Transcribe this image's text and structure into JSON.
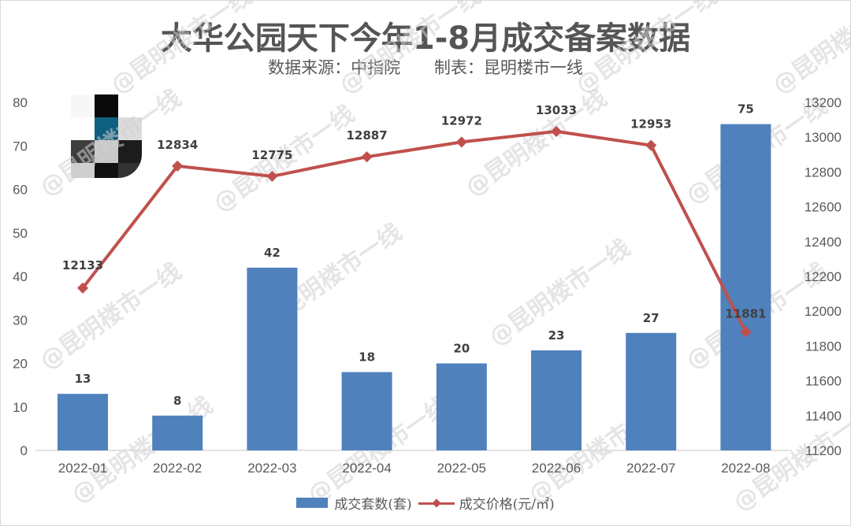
{
  "title": "大华公园天下今年1-8月成交备案数据",
  "subtitle": {
    "source": "数据来源：中指院",
    "author": "制表：昆明楼市一线"
  },
  "watermark": "@昆明楼市一线",
  "legend": {
    "bar": "成交套数(套)",
    "line": "成交价格(元/㎡)"
  },
  "colors": {
    "bar": "#4f81bd",
    "line": "#c0504d",
    "text": "#595959",
    "title": "#555555"
  },
  "chart_data": {
    "type": "bar+line",
    "title": "大华公园天下今年1-8月成交备案数据",
    "subtitle": "数据来源：中指院 制表：昆明楼市一线",
    "categories": [
      "2022-01",
      "2022-02",
      "2022-03",
      "2022-04",
      "2022-05",
      "2022-06",
      "2022-07",
      "2022-08"
    ],
    "series": [
      {
        "name": "成交套数(套)",
        "type": "bar",
        "axis": "left",
        "values": [
          13,
          8,
          42,
          18,
          20,
          23,
          27,
          75
        ]
      },
      {
        "name": "成交价格(元/㎡)",
        "type": "line",
        "axis": "right",
        "values": [
          12133,
          12834,
          12775,
          12887,
          12972,
          13033,
          12953,
          11881
        ]
      }
    ],
    "left_axis": {
      "ylim": [
        0,
        80
      ],
      "ticks": [
        "0",
        "10",
        "20",
        "30",
        "40",
        "50",
        "60",
        "70",
        "80"
      ]
    },
    "right_axis": {
      "ylim": [
        11200,
        13200
      ],
      "ticks": [
        "11200",
        "11400",
        "11600",
        "11800",
        "12000",
        "12200",
        "12400",
        "12600",
        "12800",
        "13000",
        "13200"
      ]
    },
    "xlabel": "",
    "ylabel": "",
    "grid": false,
    "legend_position": "bottom"
  }
}
